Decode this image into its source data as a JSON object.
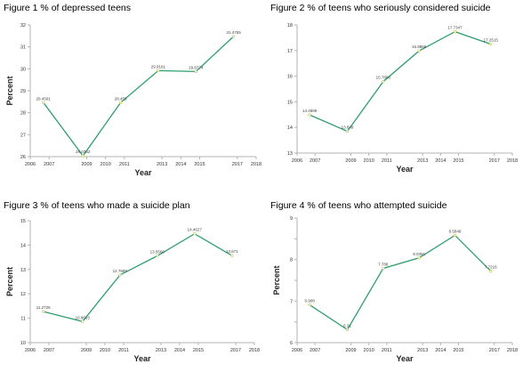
{
  "colors": {
    "line": "#2e9e6e",
    "marker": "#c8c24a",
    "axis": "#b3b3b3"
  },
  "chart_data": [
    {
      "type": "line",
      "title": "Figure 1 % of depressed teens",
      "xlabel": "Year",
      "ylabel": "Percent",
      "xlim": [
        2006,
        2018
      ],
      "ylim": [
        26,
        32
      ],
      "xticks": [
        2006,
        2007,
        2009,
        2010,
        2011,
        2013,
        2014,
        2015,
        2017,
        2018
      ],
      "yticks": [
        26,
        27,
        28,
        29,
        30,
        31,
        32
      ],
      "x": [
        2006.7,
        2008.8,
        2010.8,
        2012.8,
        2014.8,
        2016.8
      ],
      "y": [
        28.4591,
        26.0362,
        28.459,
        29.9181,
        29.8774,
        31.4755
      ],
      "point_labels": [
        "28.4591",
        "26.0362",
        "28.459",
        "29.9181",
        "29.8774",
        "31.4755"
      ],
      "grid": false
    },
    {
      "type": "line",
      "title": "Figure 2 % of teens who seriously considered suicide",
      "xlabel": "Year",
      "ylabel": "",
      "xlim": [
        2006,
        2018
      ],
      "ylim": [
        13,
        18
      ],
      "xticks": [
        2006,
        2007,
        2009,
        2010,
        2011,
        2013,
        2014,
        2015,
        2017,
        2018
      ],
      "yticks": [
        13,
        14,
        15,
        16,
        17,
        18
      ],
      "x": [
        2006.7,
        2008.8,
        2010.8,
        2012.8,
        2014.8,
        2016.8
      ],
      "y": [
        14.4889,
        13.849,
        15.7868,
        16.9866,
        17.7347,
        17.2515
      ],
      "point_labels": [
        "14.4889",
        "13.849",
        "15.7868",
        "16.9866",
        "17.7347",
        "17.2515"
      ],
      "grid": false
    },
    {
      "type": "line",
      "title": "Figure 3 % of teens who made a suicide plan",
      "xlabel": "Year",
      "ylabel": "Percent",
      "xlim": [
        2006,
        2018
      ],
      "ylim": [
        10,
        15
      ],
      "xticks": [
        2006,
        2007,
        2009,
        2010,
        2011,
        2013,
        2014,
        2015,
        2017,
        2018
      ],
      "yticks": [
        10,
        11,
        12,
        13,
        14,
        15
      ],
      "x": [
        2006.7,
        2008.8,
        2010.8,
        2012.8,
        2014.8,
        2016.8
      ],
      "y": [
        11.2726,
        10.8663,
        12.7689,
        13.5566,
        14.4627,
        13.571
      ],
      "point_labels": [
        "11.2726",
        "10.8663",
        "12.7689",
        "13.5566",
        "14.4627",
        "13.571"
      ],
      "grid": false
    },
    {
      "type": "line",
      "title": "Figure 4 % of teens who attempted suicide",
      "xlabel": "Year",
      "ylabel": "Percent",
      "xlim": [
        2006,
        2018
      ],
      "ylim": [
        6,
        9
      ],
      "xticks": [
        2006,
        2007,
        2009,
        2010,
        2011,
        2013,
        2014,
        2015,
        2017,
        2018
      ],
      "yticks": [
        6,
        6.5,
        7,
        7.5,
        8,
        8.5,
        9
      ],
      "ytick_labels": [
        "6",
        "",
        "7",
        "",
        "8",
        "",
        "9"
      ],
      "x": [
        2006.7,
        2008.8,
        2010.8,
        2012.8,
        2014.8,
        2016.8
      ],
      "y": [
        6.908,
        6.31,
        7.788,
        8.0391,
        8.5848,
        7.7216
      ],
      "point_labels": [
        "6.908",
        "6.31",
        "7.788",
        "8.0391",
        "8.5848",
        "7.7216"
      ],
      "grid": false
    }
  ]
}
